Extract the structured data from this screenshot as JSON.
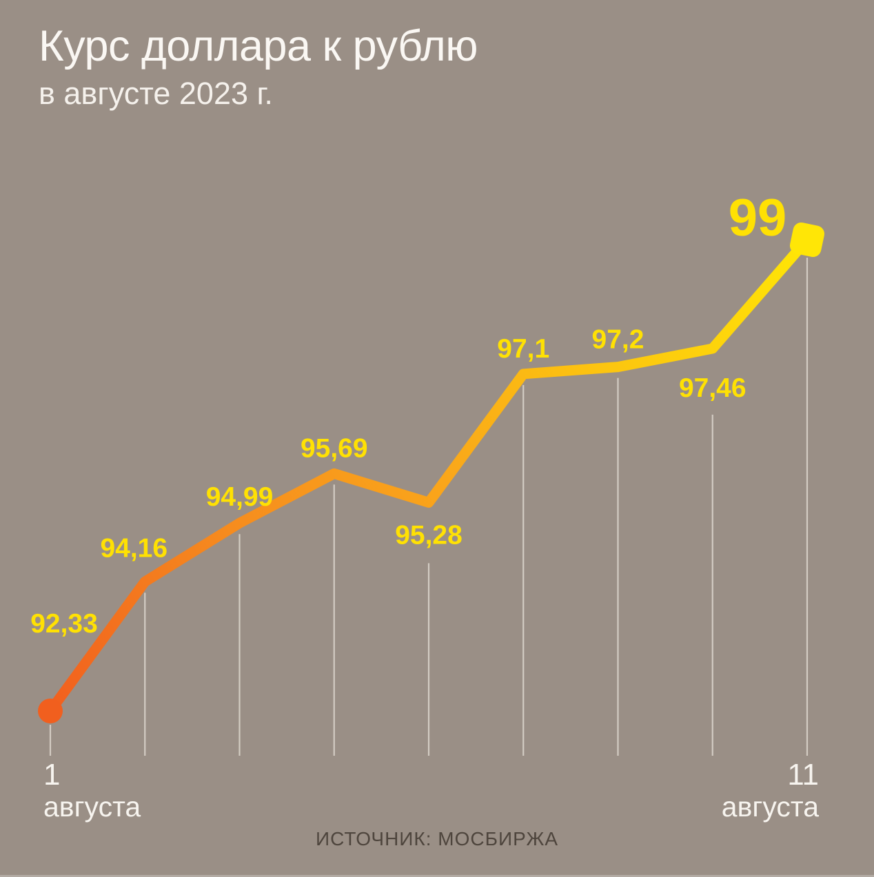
{
  "header": {
    "title": "Курс доллара к рублю",
    "subtitle": "в августе 2023 г."
  },
  "chart_data": {
    "type": "line",
    "title": "Курс доллара к рублю в августе 2023 г.",
    "values": [
      92.33,
      94.16,
      94.99,
      95.69,
      95.28,
      97.1,
      97.2,
      97.46,
      99
    ],
    "value_labels": [
      "92,33",
      "94,16",
      "94,99",
      "95,69",
      "95,28",
      "97,1",
      "97,2",
      "97,46",
      "99"
    ],
    "x_axis_labels": {
      "start": [
        "1",
        "августа"
      ],
      "end": [
        "11",
        "августа"
      ]
    },
    "ylim": [
      92.33,
      99
    ],
    "grid": "vertical drop lines under each point",
    "legend": "none",
    "colors": {
      "background": "#9a8f86",
      "label_yellow": "#ffe103",
      "drop_line": "#ddd7ce",
      "line_gradient": [
        {
          "offset": 0,
          "color": "#f15f1e"
        },
        {
          "offset": 0.28,
          "color": "#f68c1e"
        },
        {
          "offset": 0.52,
          "color": "#faa71a"
        },
        {
          "offset": 0.74,
          "color": "#fcc60f"
        },
        {
          "offset": 1,
          "color": "#ffe606"
        }
      ]
    }
  },
  "source": {
    "text": "ИСТОЧНИК: МОСБИРЖА"
  }
}
